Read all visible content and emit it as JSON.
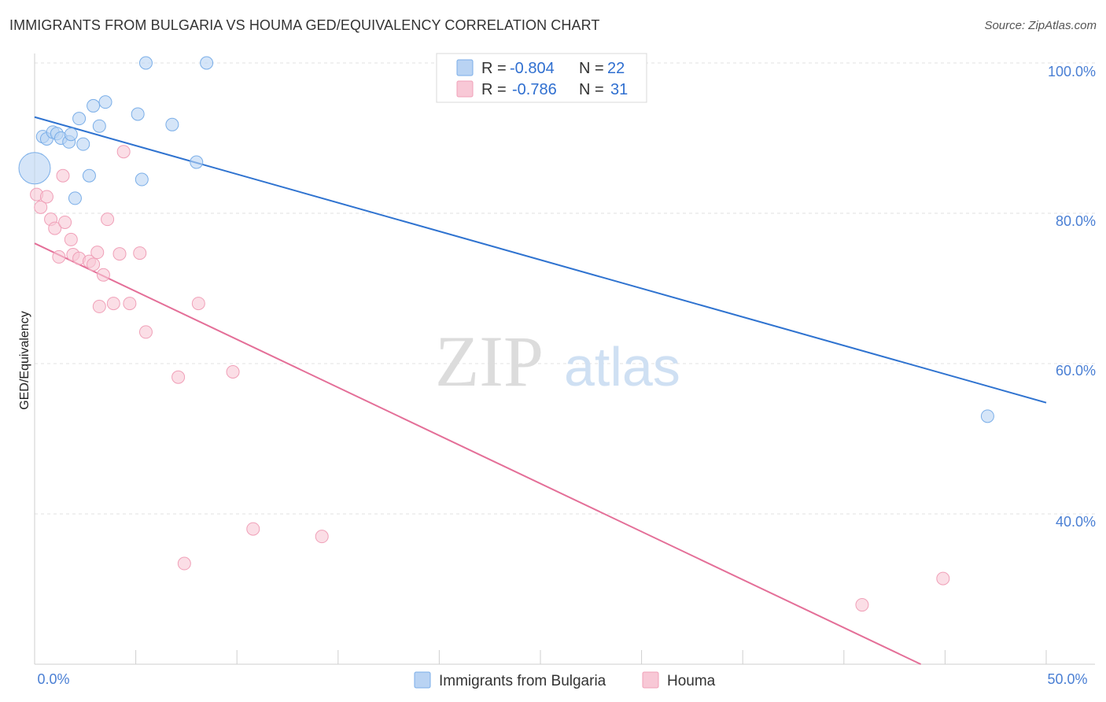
{
  "title": "IMMIGRANTS FROM BULGARIA VS HOUMA GED/EQUIVALENCY CORRELATION CHART",
  "source": "Source: ZipAtlas.com",
  "watermark": {
    "zip": "ZIP",
    "atlas": "atlas"
  },
  "legend": {
    "r_label": "R =",
    "n_label": "N =",
    "rows": [
      {
        "r": "-0.804",
        "n": "22"
      },
      {
        "r": "-0.786",
        "n": "31"
      }
    ]
  },
  "chart_data": {
    "type": "scatter",
    "title": "IMMIGRANTS FROM BULGARIA VS HOUMA GED/EQUIVALENCY CORRELATION CHART",
    "xlabel": "",
    "ylabel": "GED/Equivalency",
    "xlim": [
      0,
      50
    ],
    "ylim": [
      20,
      102
    ],
    "x_tick_labels": [
      "0.0%",
      "50.0%"
    ],
    "y_ticks": [
      40,
      60,
      80,
      100
    ],
    "y_tick_labels": [
      "40.0%",
      "60.0%",
      "80.0%",
      "100.0%"
    ],
    "grid": true,
    "legend_position": "top-center",
    "series": [
      {
        "name": "Immigrants from Bulgaria",
        "color": "#7aaee8",
        "fill": "#b9d3f3",
        "line_color": "#2f73d0",
        "trend": {
          "x": [
            0,
            50
          ],
          "y": [
            92.8,
            54.8
          ]
        },
        "points": [
          {
            "x": 0.0,
            "y": 86.0,
            "big": true
          },
          {
            "x": 0.4,
            "y": 90.2
          },
          {
            "x": 0.6,
            "y": 89.9
          },
          {
            "x": 0.9,
            "y": 90.8
          },
          {
            "x": 1.1,
            "y": 90.6
          },
          {
            "x": 1.3,
            "y": 90.0
          },
          {
            "x": 1.7,
            "y": 89.5
          },
          {
            "x": 1.8,
            "y": 90.5
          },
          {
            "x": 2.0,
            "y": 82.0
          },
          {
            "x": 2.2,
            "y": 92.6
          },
          {
            "x": 2.4,
            "y": 89.2
          },
          {
            "x": 2.7,
            "y": 85.0
          },
          {
            "x": 2.9,
            "y": 94.3
          },
          {
            "x": 3.2,
            "y": 91.6
          },
          {
            "x": 3.5,
            "y": 94.8
          },
          {
            "x": 5.1,
            "y": 93.2
          },
          {
            "x": 5.3,
            "y": 84.5
          },
          {
            "x": 5.5,
            "y": 100.0
          },
          {
            "x": 6.8,
            "y": 91.8
          },
          {
            "x": 8.0,
            "y": 86.8
          },
          {
            "x": 8.5,
            "y": 100.0
          },
          {
            "x": 47.1,
            "y": 53.0
          }
        ]
      },
      {
        "name": "Houma",
        "color": "#f0a0b8",
        "fill": "#f8c8d6",
        "line_color": "#e46f98",
        "trend": {
          "x": [
            0,
            43.8
          ],
          "y": [
            76.0,
            20.0
          ]
        },
        "points": [
          {
            "x": 0.1,
            "y": 82.5
          },
          {
            "x": 0.3,
            "y": 80.8
          },
          {
            "x": 0.6,
            "y": 82.2
          },
          {
            "x": 0.8,
            "y": 79.2
          },
          {
            "x": 1.0,
            "y": 78.0
          },
          {
            "x": 1.2,
            "y": 74.2
          },
          {
            "x": 1.4,
            "y": 85.0
          },
          {
            "x": 1.5,
            "y": 78.8
          },
          {
            "x": 1.8,
            "y": 76.5
          },
          {
            "x": 1.9,
            "y": 74.5
          },
          {
            "x": 2.2,
            "y": 74.0
          },
          {
            "x": 2.7,
            "y": 73.6
          },
          {
            "x": 2.9,
            "y": 73.2
          },
          {
            "x": 3.1,
            "y": 74.8
          },
          {
            "x": 3.2,
            "y": 67.6
          },
          {
            "x": 3.4,
            "y": 71.8
          },
          {
            "x": 3.6,
            "y": 79.2
          },
          {
            "x": 3.9,
            "y": 68.0
          },
          {
            "x": 4.2,
            "y": 74.6
          },
          {
            "x": 4.4,
            "y": 88.2
          },
          {
            "x": 4.7,
            "y": 68.0
          },
          {
            "x": 5.2,
            "y": 74.7
          },
          {
            "x": 5.5,
            "y": 64.2
          },
          {
            "x": 7.1,
            "y": 58.2
          },
          {
            "x": 7.4,
            "y": 33.4
          },
          {
            "x": 8.1,
            "y": 68.0
          },
          {
            "x": 9.8,
            "y": 58.9
          },
          {
            "x": 10.8,
            "y": 38.0
          },
          {
            "x": 14.2,
            "y": 37.0
          },
          {
            "x": 40.9,
            "y": 27.9
          },
          {
            "x": 44.9,
            "y": 31.4
          }
        ]
      }
    ]
  }
}
